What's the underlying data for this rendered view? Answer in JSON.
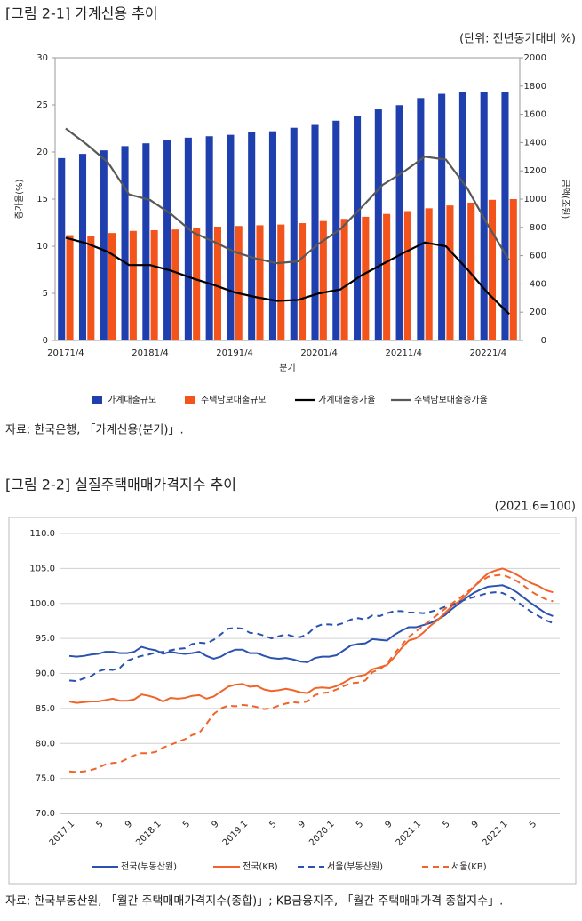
{
  "figures": [
    {
      "title": "[그림 2-1] 가계신용 추이",
      "note": "(단위: 전년동기대비 %)",
      "source": "자료: 한국은행, 「가계신용(분기)」."
    },
    {
      "title": "[그림 2-2] 실질주택매매가격지수 추이",
      "note": "(2021.6=100)",
      "source": "자료: 한국부동산원, 「월간 주택매매가격지수(종합)」; KB금융지주, 「월간 주택매매가격 종합지수」."
    }
  ],
  "chart_data": [
    {
      "type": "bar",
      "x_label": "분기",
      "y_label": "증가율(%)",
      "y2_label": "금액(조원)",
      "categories": [
        "20171/4",
        null,
        null,
        null,
        "20181/4",
        null,
        null,
        null,
        "20191/4",
        null,
        null,
        null,
        "20201/4",
        null,
        null,
        null,
        "20211/4",
        null,
        null,
        null,
        "20221/4",
        null
      ],
      "ylim": [
        0,
        30
      ],
      "yticks": [
        0,
        5,
        10,
        15,
        20,
        25,
        30
      ],
      "y2lim": [
        0,
        2000
      ],
      "y2ticks": [
        0,
        200,
        400,
        600,
        800,
        1000,
        1200,
        1400,
        1600,
        1800,
        2000
      ],
      "series": [
        {
          "name": "가계대출규모",
          "type": "bar",
          "axis": "y2",
          "color": "#1f3fae",
          "values": [
            1290,
            1320,
            1345,
            1375,
            1395,
            1415,
            1435,
            1445,
            1455,
            1475,
            1480,
            1505,
            1525,
            1555,
            1585,
            1635,
            1665,
            1715,
            1745,
            1755,
            1755,
            1760
          ]
        },
        {
          "name": "주택담보대출규모",
          "type": "bar",
          "axis": "y2",
          "color": "#f2541b",
          "values": [
            745,
            740,
            760,
            775,
            780,
            785,
            795,
            805,
            810,
            815,
            820,
            830,
            845,
            860,
            875,
            895,
            915,
            935,
            955,
            975,
            995,
            1000
          ]
        },
        {
          "name": "가계대출증가율",
          "type": "line",
          "color": "#000000",
          "values": [
            10.9,
            10.3,
            9.4,
            8.0,
            8.0,
            7.4,
            6.6,
            5.9,
            5.1,
            4.6,
            4.2,
            4.3,
            5.0,
            5.4,
            6.9,
            8.1,
            9.3,
            10.4,
            10.0,
            7.6,
            5.0,
            2.8
          ]
        },
        {
          "name": "주택담보대출증가율",
          "type": "line",
          "color": "#595959",
          "values": [
            22.5,
            20.8,
            18.9,
            15.5,
            14.9,
            13.4,
            11.5,
            10.5,
            9.4,
            8.7,
            8.2,
            8.4,
            10.3,
            11.8,
            14.1,
            16.5,
            17.9,
            19.5,
            19.2,
            16.2,
            12.2,
            8.5
          ]
        }
      ]
    },
    {
      "type": "line",
      "grid": true,
      "categories": [
        "2017.1",
        null,
        null,
        null,
        "5",
        null,
        null,
        null,
        "9",
        null,
        null,
        null,
        "2018.1",
        null,
        null,
        null,
        "5",
        null,
        null,
        null,
        "9",
        null,
        null,
        null,
        "2019.1",
        null,
        null,
        null,
        "5",
        null,
        null,
        null,
        "9",
        null,
        null,
        null,
        "2020.1",
        null,
        null,
        null,
        "5",
        null,
        null,
        null,
        "9",
        null,
        null,
        null,
        "2021.1",
        null,
        null,
        null,
        "5",
        null,
        null,
        null,
        "9",
        null,
        null,
        null,
        "2022.1",
        null,
        null,
        null,
        "5",
        null,
        null,
        null
      ],
      "ylim": [
        70,
        110
      ],
      "yticks": [
        {
          "value": 70,
          "label": "70.0"
        },
        {
          "value": 75,
          "label": "75.0"
        },
        {
          "value": 80,
          "label": "80.0"
        },
        {
          "value": 85,
          "label": "85.0"
        },
        {
          "value": 90,
          "label": "90.0"
        },
        {
          "value": 95,
          "label": "95.0"
        },
        {
          "value": 100,
          "label": "100.0"
        },
        {
          "value": 105,
          "label": "105.0"
        },
        {
          "value": 110,
          "label": "110.0"
        }
      ],
      "series": [
        {
          "name": "전국(부동산원)",
          "color": "#2a52b0",
          "dash": false,
          "values": [
            92.5,
            92.4,
            92.5,
            92.7,
            92.8,
            93.1,
            93.1,
            92.9,
            92.9,
            93.1,
            93.8,
            93.5,
            93.3,
            92.8,
            93.1,
            92.9,
            92.8,
            92.9,
            93.1,
            92.5,
            92.1,
            92.4,
            93.0,
            93.4,
            93.4,
            92.9,
            92.9,
            92.5,
            92.2,
            92.1,
            92.2,
            92.0,
            91.7,
            91.6,
            92.2,
            92.4,
            92.4,
            92.6,
            93.3,
            94.0,
            94.2,
            94.3,
            94.9,
            94.8,
            94.7,
            95.5,
            96.1,
            96.6,
            96.6,
            96.9,
            97.2,
            97.7,
            98.3,
            99.2,
            100.0,
            100.8,
            101.5,
            102.0,
            102.4,
            102.5,
            102.6,
            102.2,
            101.6,
            100.8,
            100.0,
            99.3,
            98.6,
            98.2
          ]
        },
        {
          "name": "전국(KB)",
          "color": "#f0642a",
          "dash": false,
          "values": [
            86.0,
            85.8,
            85.9,
            86.0,
            86.0,
            86.2,
            86.4,
            86.1,
            86.1,
            86.3,
            87.0,
            86.8,
            86.5,
            86.0,
            86.5,
            86.4,
            86.5,
            86.8,
            86.9,
            86.4,
            86.7,
            87.4,
            88.1,
            88.4,
            88.5,
            88.1,
            88.2,
            87.7,
            87.5,
            87.6,
            87.8,
            87.6,
            87.3,
            87.2,
            87.9,
            88.0,
            87.9,
            88.2,
            88.7,
            89.3,
            89.6,
            89.8,
            90.6,
            90.9,
            91.2,
            92.3,
            93.6,
            94.7,
            95.0,
            95.8,
            96.8,
            97.6,
            98.6,
            99.6,
            100.3,
            101.2,
            102.3,
            103.4,
            104.3,
            104.7,
            105.0,
            104.6,
            104.1,
            103.5,
            102.9,
            102.5,
            101.9,
            101.6
          ]
        },
        {
          "name": "서울(부동산원)",
          "color": "#2a52b0",
          "dash": true,
          "values": [
            89.0,
            88.9,
            89.3,
            89.6,
            90.3,
            90.6,
            90.5,
            90.8,
            91.8,
            92.2,
            92.5,
            92.7,
            93.0,
            93.1,
            93.3,
            93.5,
            93.6,
            94.2,
            94.4,
            94.3,
            94.8,
            95.6,
            96.4,
            96.5,
            96.4,
            95.8,
            95.7,
            95.4,
            95.0,
            95.3,
            95.6,
            95.3,
            95.2,
            95.6,
            96.6,
            97.0,
            97.0,
            96.9,
            97.2,
            97.7,
            97.9,
            97.7,
            98.3,
            98.2,
            98.6,
            98.9,
            98.9,
            98.7,
            98.7,
            98.6,
            98.8,
            99.1,
            99.5,
            99.8,
            100.2,
            100.6,
            100.9,
            101.2,
            101.5,
            101.6,
            101.5,
            101.0,
            100.3,
            99.5,
            98.8,
            98.2,
            97.6,
            97.2
          ]
        },
        {
          "name": "서울(KB)",
          "color": "#f0642a",
          "dash": true,
          "values": [
            76.0,
            75.9,
            76.0,
            76.2,
            76.5,
            77.0,
            77.2,
            77.3,
            77.8,
            78.3,
            78.6,
            78.6,
            78.8,
            79.4,
            79.8,
            80.2,
            80.6,
            81.2,
            81.5,
            82.8,
            84.2,
            85.0,
            85.4,
            85.3,
            85.5,
            85.4,
            85.2,
            84.9,
            85.0,
            85.4,
            85.7,
            85.9,
            85.8,
            86.0,
            86.9,
            87.2,
            87.3,
            87.7,
            88.2,
            88.6,
            88.7,
            89.0,
            90.2,
            90.6,
            91.4,
            92.8,
            94.0,
            95.2,
            96.0,
            96.8,
            97.6,
            98.4,
            99.2,
            100.0,
            100.7,
            101.5,
            102.4,
            103.2,
            103.8,
            104.0,
            104.1,
            103.7,
            103.2,
            102.5,
            101.7,
            101.1,
            100.6,
            100.3
          ]
        }
      ]
    }
  ]
}
